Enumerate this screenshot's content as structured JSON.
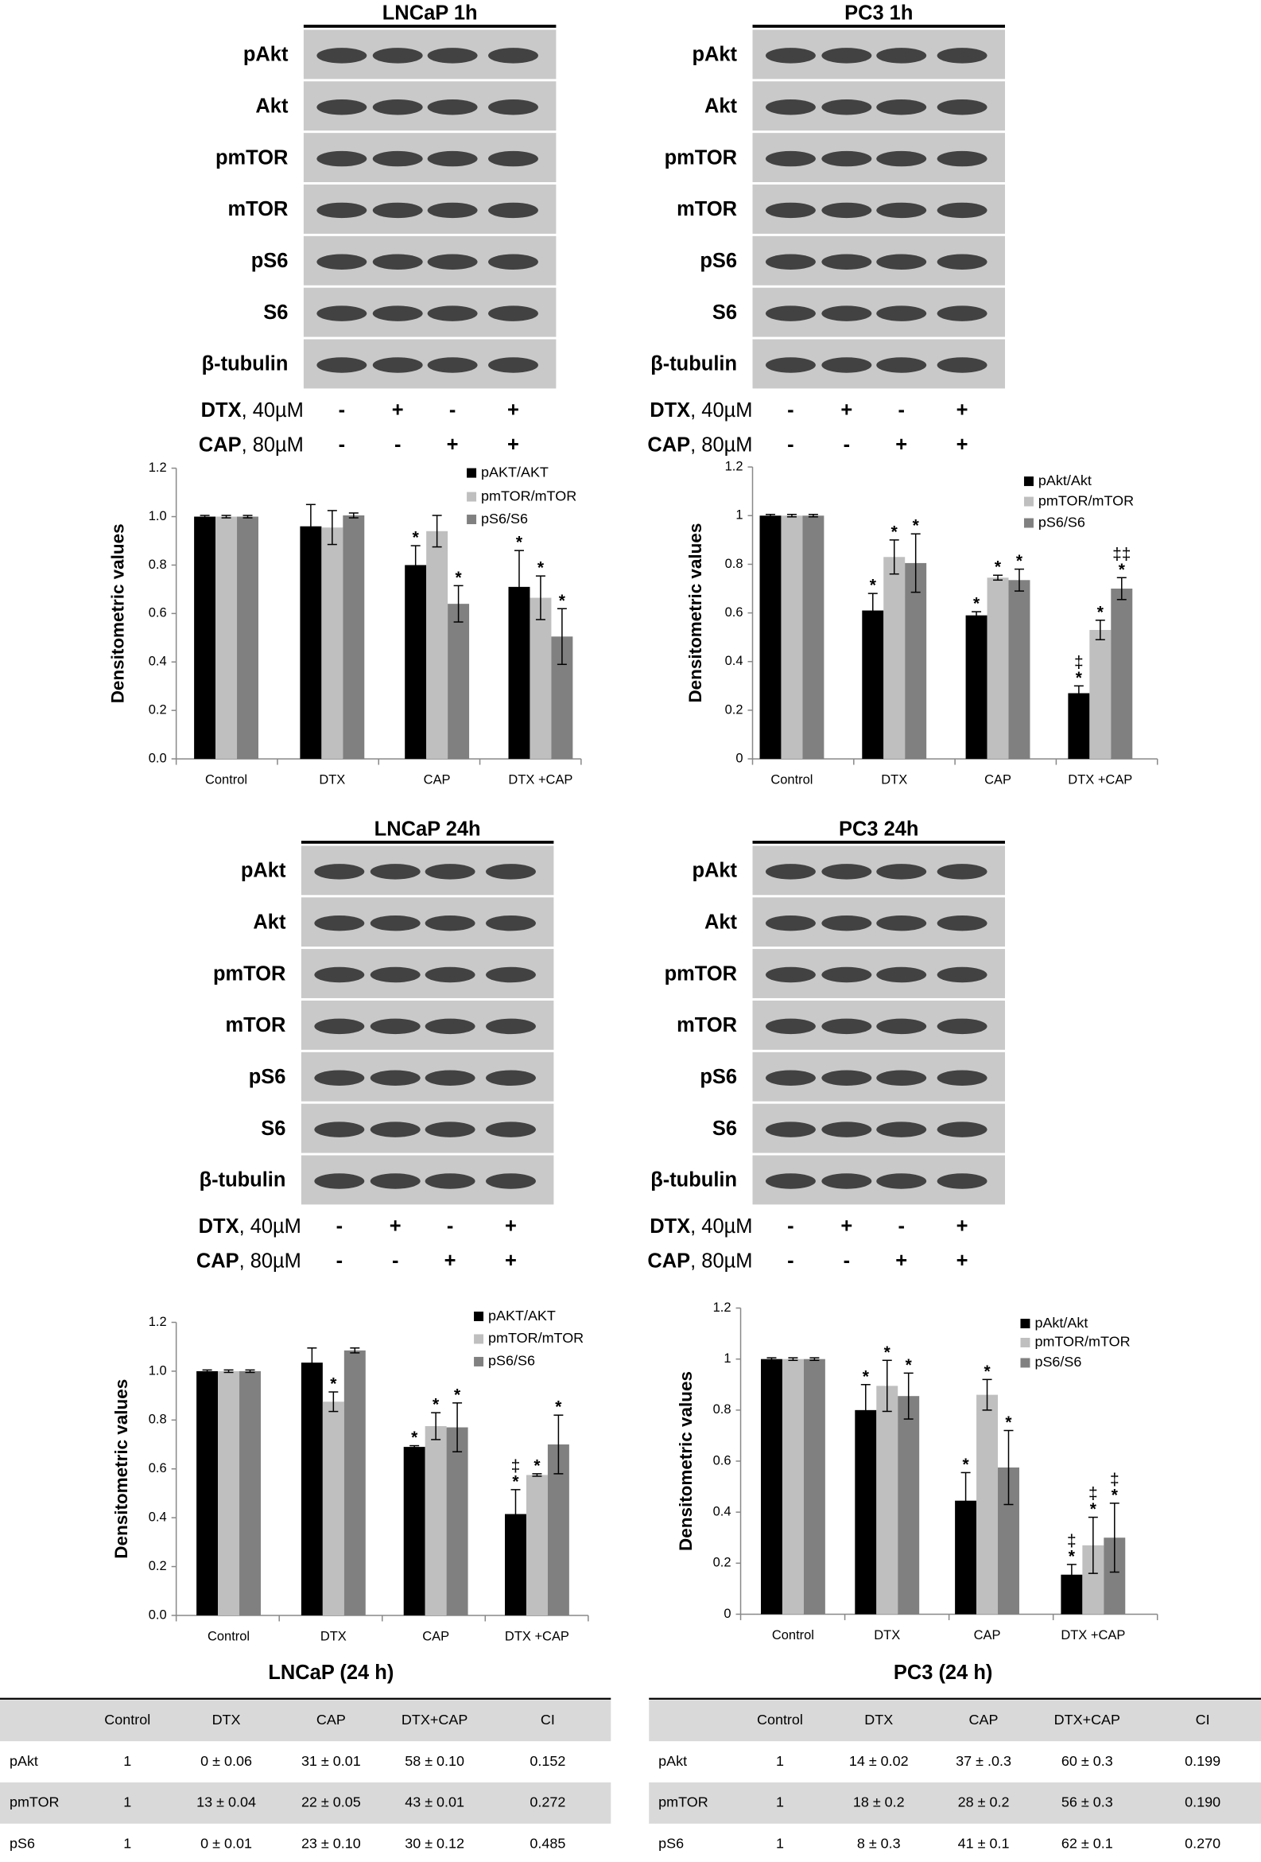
{
  "blots": [
    {
      "title": "LNCaP 1h",
      "rows": [
        "pAkt",
        "Akt",
        "pmTOR",
        "mTOR",
        "pS6",
        "S6",
        "β-tubulin"
      ],
      "treatments": [
        {
          "name": "DTX",
          "dose": ", 40µM",
          "signs": [
            "-",
            "+",
            "-",
            "+"
          ]
        },
        {
          "name": "CAP",
          "dose": ", 80µM",
          "signs": [
            "-",
            "-",
            "+",
            "+"
          ]
        }
      ]
    },
    {
      "title": "PC3 1h",
      "rows": [
        "pAkt",
        "Akt",
        "pmTOR",
        "mTOR",
        "pS6",
        "S6",
        "β-tubulin"
      ],
      "treatments": [
        {
          "name": "DTX",
          "dose": ", 40µM",
          "signs": [
            "-",
            "+",
            "-",
            "+"
          ]
        },
        {
          "name": "CAP",
          "dose": ", 80µM",
          "signs": [
            "-",
            "-",
            "+",
            "+"
          ]
        }
      ]
    },
    {
      "title": "LNCaP 24h",
      "rows": [
        "pAkt",
        "Akt",
        "pmTOR",
        "mTOR",
        "pS6",
        "S6",
        "β-tubulin"
      ],
      "treatments": [
        {
          "name": "DTX",
          "dose": ", 40µM",
          "signs": [
            "-",
            "+",
            "-",
            "+"
          ]
        },
        {
          "name": "CAP",
          "dose": ", 80µM",
          "signs": [
            "-",
            "-",
            "+",
            "+"
          ]
        }
      ]
    },
    {
      "title": "PC3 24h",
      "rows": [
        "pAkt",
        "Akt",
        "pmTOR",
        "mTOR",
        "pS6",
        "S6",
        "β-tubulin"
      ],
      "treatments": [
        {
          "name": "DTX",
          "dose": ", 40µM",
          "signs": [
            "-",
            "+",
            "-",
            "+"
          ]
        },
        {
          "name": "CAP",
          "dose": ", 80µM",
          "signs": [
            "-",
            "-",
            "+",
            "+"
          ]
        }
      ]
    }
  ],
  "chart_data": [
    {
      "type": "bar",
      "y_label": "Densitometric values",
      "categories": [
        "Control",
        "DTX",
        "CAP",
        "DTX +CAP"
      ],
      "ylim": [
        0,
        1.2
      ],
      "yticks": [
        {
          "value": 0,
          "label": "0.0"
        },
        0.2,
        0.4,
        0.6,
        0.8,
        {
          "value": 1,
          "label": "1.0"
        },
        1.2
      ],
      "series": [
        {
          "name": "pAKT/AKT",
          "color": "#000000",
          "values": [
            1.0,
            0.96,
            0.8,
            0.71
          ],
          "errors": [
            0.005,
            0.09,
            0.08,
            0.15
          ],
          "labels": [
            null,
            null,
            [
              "*"
            ],
            [
              "*"
            ]
          ]
        },
        {
          "name": "pmTOR/mTOR",
          "color": "#bfbfbf",
          "values": [
            1.0,
            0.955,
            0.94,
            0.665
          ],
          "errors": [
            0.005,
            0.07,
            0.065,
            0.09
          ],
          "labels": [
            null,
            null,
            null,
            [
              "*"
            ]
          ]
        },
        {
          "name": "pS6/S6",
          "color": "#808080",
          "values": [
            1.0,
            1.005,
            0.64,
            0.505
          ],
          "errors": [
            0.005,
            0.01,
            0.075,
            0.115
          ],
          "labels": [
            null,
            null,
            [
              "*"
            ],
            [
              "*"
            ]
          ]
        }
      ]
    },
    {
      "type": "bar",
      "y_label": "Densitometric values",
      "categories": [
        "Control",
        "DTX",
        "CAP",
        "DTX +CAP"
      ],
      "ylim": [
        0,
        1.2
      ],
      "yticks": [
        0,
        0.2,
        0.4,
        0.6,
        0.8,
        1,
        1.2
      ],
      "series": [
        {
          "name": "pAkt/Akt",
          "color": "#000000",
          "values": [
            1.0,
            0.61,
            0.59,
            0.27
          ],
          "errors": [
            0.005,
            0.07,
            0.015,
            0.03
          ],
          "labels": [
            null,
            [
              "*"
            ],
            [
              "*"
            ],
            [
              "‡",
              "*"
            ]
          ]
        },
        {
          "name": "pmTOR/mTOR",
          "color": "#bfbfbf",
          "values": [
            1.0,
            0.83,
            0.745,
            0.53
          ],
          "errors": [
            0.005,
            0.07,
            0.01,
            0.04
          ],
          "labels": [
            null,
            [
              "*"
            ],
            [
              "*"
            ],
            [
              "*"
            ]
          ]
        },
        {
          "name": "pS6/S6",
          "color": "#808080",
          "values": [
            1.0,
            0.805,
            0.735,
            0.7
          ],
          "errors": [
            0.005,
            0.12,
            0.045,
            0.045
          ],
          "labels": [
            null,
            [
              "*"
            ],
            [
              "*"
            ],
            [
              "‡‡",
              "*"
            ]
          ]
        }
      ]
    },
    {
      "type": "bar",
      "y_label": "Densitometric values",
      "categories": [
        "Control",
        "DTX",
        "CAP",
        "DTX +CAP"
      ],
      "ylim": [
        0,
        1.2
      ],
      "yticks": [
        {
          "value": 0,
          "label": "0.0"
        },
        0.2,
        0.4,
        0.6,
        0.8,
        {
          "value": 1,
          "label": "1.0"
        },
        1.2
      ],
      "series": [
        {
          "name": "pAKT/AKT",
          "color": "#000000",
          "values": [
            1.0,
            1.035,
            0.69,
            0.415
          ],
          "errors": [
            0.005,
            0.06,
            0.005,
            0.1
          ],
          "labels": [
            null,
            null,
            [
              "*"
            ],
            [
              "‡",
              "*"
            ]
          ]
        },
        {
          "name": "pmTOR/mTOR",
          "color": "#bfbfbf",
          "values": [
            1.0,
            0.875,
            0.775,
            0.575
          ],
          "errors": [
            0.005,
            0.04,
            0.055,
            0.005
          ],
          "labels": [
            null,
            [
              "*"
            ],
            [
              "*"
            ],
            [
              "*"
            ]
          ]
        },
        {
          "name": "pS6/S6",
          "color": "#808080",
          "values": [
            1.0,
            1.085,
            0.77,
            0.7
          ],
          "errors": [
            0.005,
            0.01,
            0.1,
            0.12
          ],
          "labels": [
            null,
            null,
            [
              "*"
            ],
            [
              "*"
            ]
          ]
        }
      ]
    },
    {
      "type": "bar",
      "y_label": "Densitometric values",
      "categories": [
        "Control",
        "DTX",
        "CAP",
        "DTX +CAP"
      ],
      "ylim": [
        0,
        1.2
      ],
      "yticks": [
        0,
        0.2,
        0.4,
        0.6,
        0.8,
        1,
        1.2
      ],
      "series": [
        {
          "name": "pAkt/Akt",
          "color": "#000000",
          "values": [
            1.0,
            0.8,
            0.445,
            0.155
          ],
          "errors": [
            0.005,
            0.1,
            0.11,
            0.04
          ],
          "labels": [
            null,
            [
              "*"
            ],
            [
              "*"
            ],
            [
              "‡",
              "*"
            ]
          ]
        },
        {
          "name": "pmTOR/mTOR",
          "color": "#bfbfbf",
          "values": [
            1.0,
            0.895,
            0.86,
            0.27
          ],
          "errors": [
            0.005,
            0.1,
            0.06,
            0.11
          ],
          "labels": [
            null,
            [
              "*"
            ],
            [
              "*"
            ],
            [
              "‡",
              "*"
            ]
          ]
        },
        {
          "name": "pS6/S6",
          "color": "#808080",
          "values": [
            1.0,
            0.855,
            0.575,
            0.3
          ],
          "errors": [
            0.005,
            0.09,
            0.145,
            0.135
          ],
          "labels": [
            null,
            [
              "*"
            ],
            [
              "*"
            ],
            [
              "‡",
              "*"
            ]
          ]
        }
      ]
    }
  ],
  "tables": [
    {
      "title": "LNCaP (24 h)",
      "header": [
        null,
        "Control",
        "DTX",
        "CAP",
        "DTX+CAP",
        "CI"
      ],
      "rows": [
        [
          "pAkt",
          "1",
          "0 ± 0.06",
          "31 ± 0.01",
          "58 ± 0.10",
          "0.152"
        ],
        [
          "pmTOR",
          "1",
          "13 ± 0.04",
          "22 ± 0.05",
          "43 ± 0.01",
          "0.272"
        ],
        [
          "pS6",
          "1",
          "0 ± 0.01",
          "23 ± 0.10",
          "30 ± 0.12",
          "0.485"
        ]
      ]
    },
    {
      "title": "PC3 (24 h)",
      "header": [
        null,
        "Control",
        "DTX",
        "CAP",
        "DTX+CAP",
        "CI"
      ],
      "rows": [
        [
          "pAkt",
          "1",
          "14 ± 0.02",
          "37 ± .0.3",
          "60 ± 0.3",
          "0.199"
        ],
        [
          "pmTOR",
          "1",
          "18 ± 0.2",
          "28 ± 0.2",
          "56 ± 0.3",
          "0.190"
        ],
        [
          "pS6",
          "1",
          "8 ± 0.3",
          "41 ± 0.1",
          "62 ± 0.1",
          "0.270"
        ]
      ]
    }
  ]
}
